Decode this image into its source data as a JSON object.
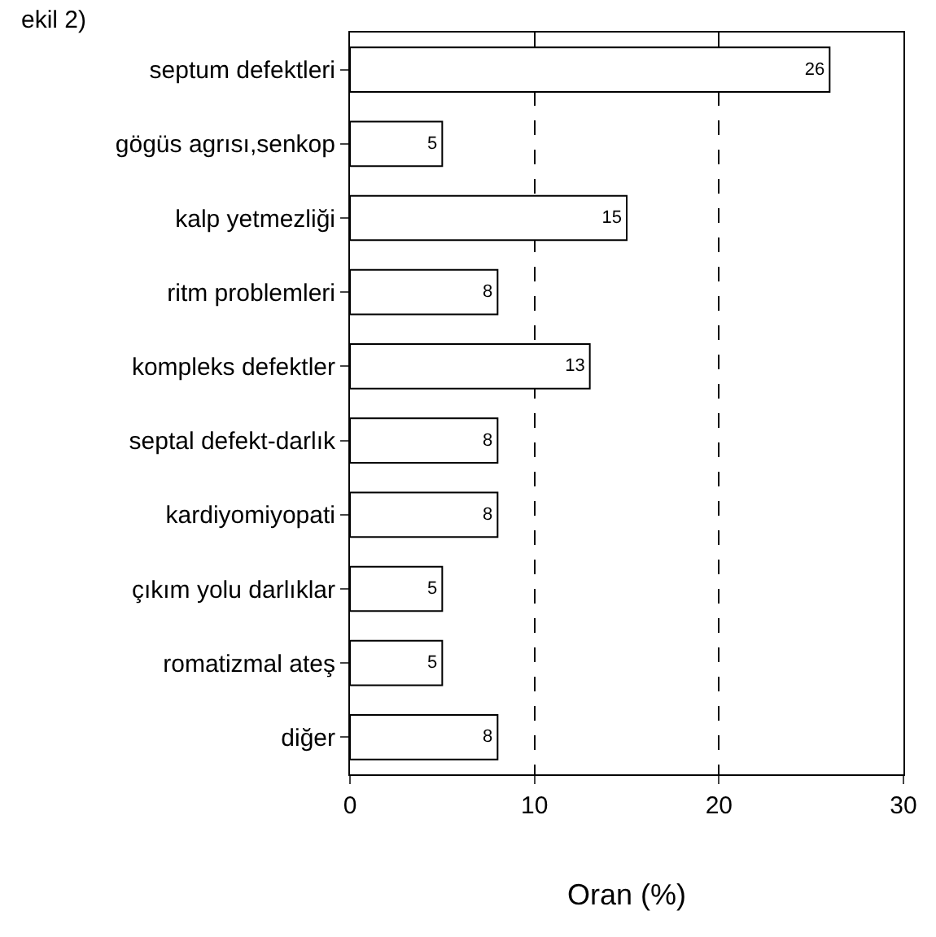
{
  "chart_data": {
    "type": "bar",
    "orientation": "horizontal",
    "annotations": [
      "ekil 2)"
    ],
    "categories": [
      "septum defektleri",
      "gögüs agrısı,senkop",
      "kalp yetmezliği",
      "ritm problemleri",
      "kompleks defektler",
      "septal defekt-darlık",
      "kardiyomiyopati",
      "çıkım yolu darlıklar",
      "romatizmal ateş",
      "diğer"
    ],
    "values": [
      26,
      5,
      15,
      8,
      13,
      8,
      8,
      5,
      5,
      8
    ],
    "color": "#ffffff",
    "data_labels": true,
    "xlabel": "Oran (%)",
    "xlim": [
      0,
      30
    ],
    "xticks": [
      0,
      10,
      20,
      30
    ],
    "grid": "x"
  }
}
